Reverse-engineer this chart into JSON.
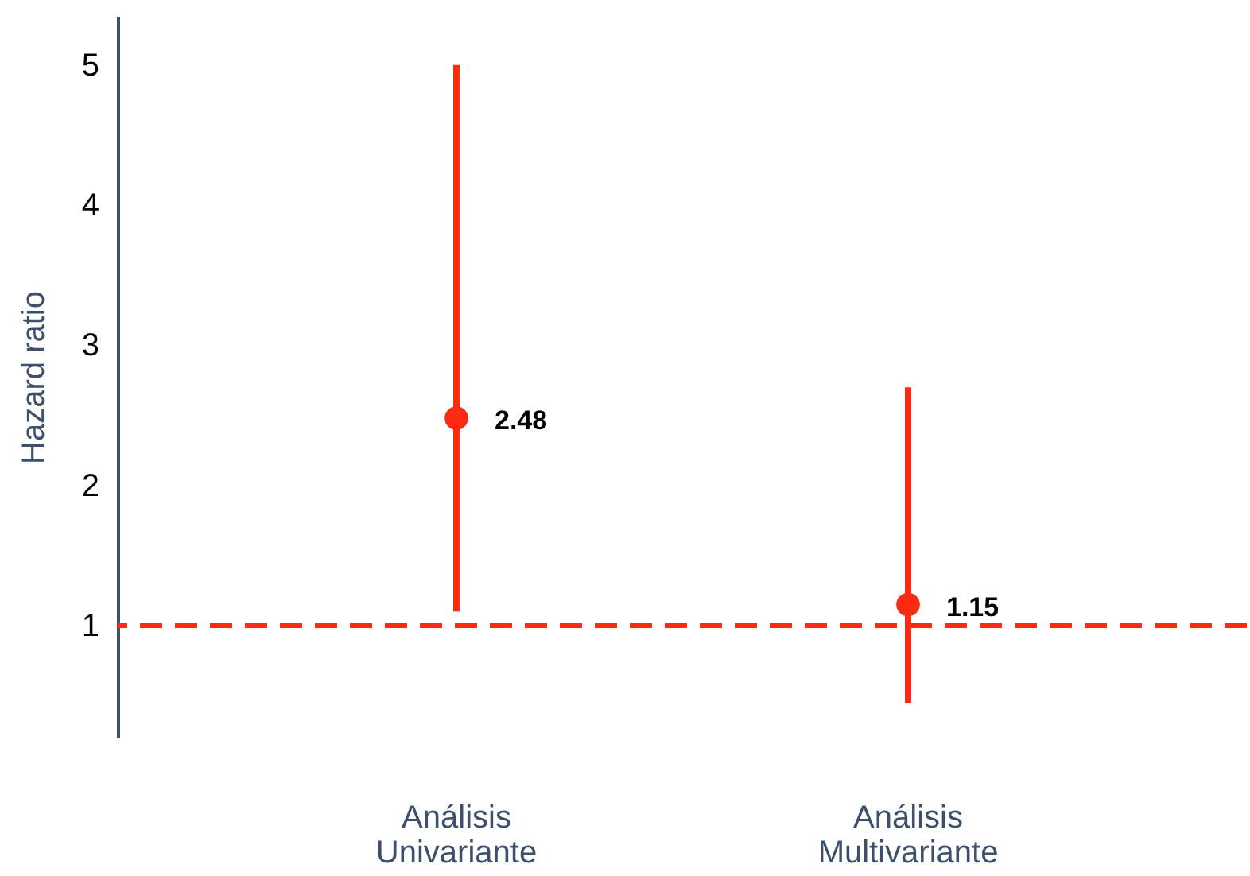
{
  "chart_data": {
    "type": "scatter",
    "ylabel": "Hazard ratio",
    "categories": [
      "Análisis Univariante",
      "Análisis Multivariante"
    ],
    "series": [
      {
        "color": "#ff2a12",
        "values": [
          2.48,
          1.15
        ],
        "errors": [
          [
            1.1,
            5.0
          ],
          [
            0.45,
            2.7
          ]
        ]
      }
    ],
    "data_labels": true,
    "marker": "circle",
    "ylim": [
      0.2,
      5.35
    ],
    "yticks": [
      1,
      2,
      3,
      4,
      5
    ],
    "grid": false,
    "ref_lines": [
      {
        "axis": "y",
        "value": 1,
        "color": "#ff2a12",
        "line_style": "dashed"
      }
    ]
  }
}
